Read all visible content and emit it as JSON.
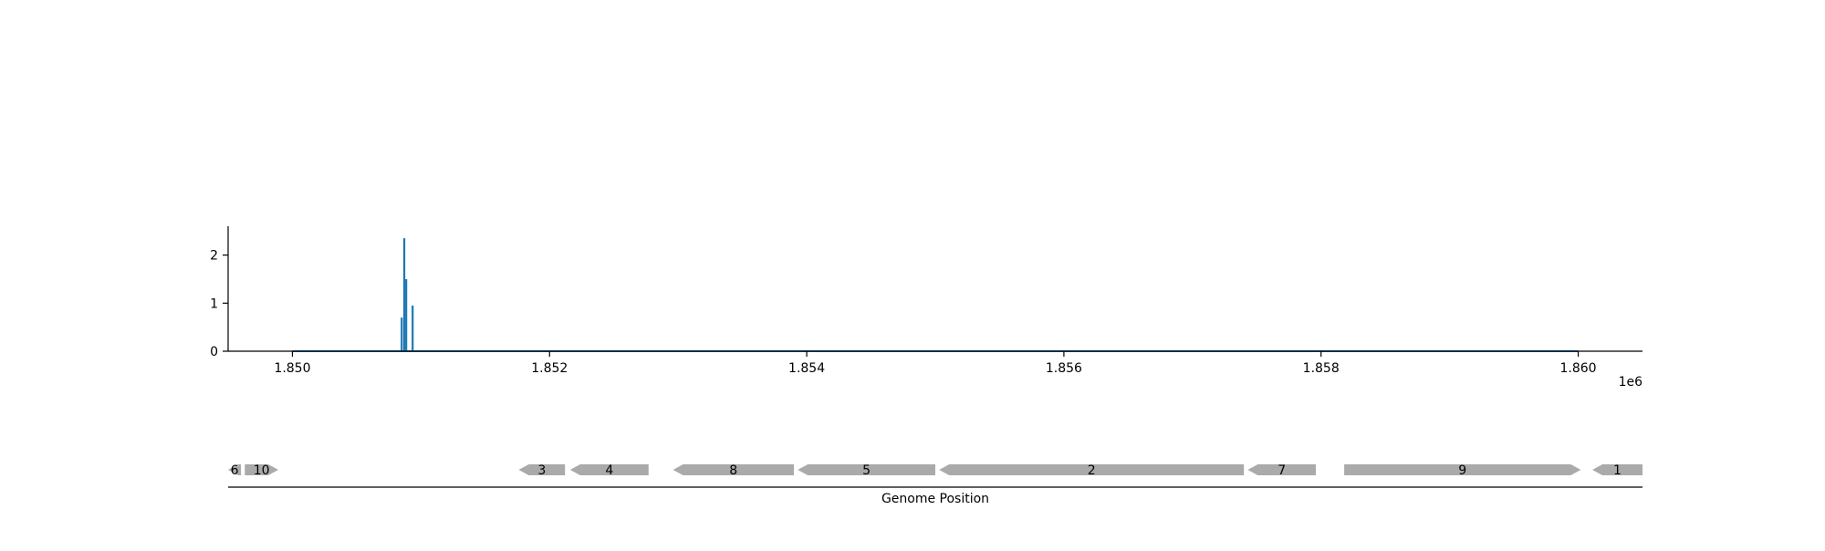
{
  "chart_data": [
    {
      "type": "line",
      "title": "",
      "xlabel": "",
      "ylabel": "",
      "x_offset_label": "1e6",
      "xlim": [
        1849500,
        1860500
      ],
      "ylim": [
        0,
        2.6
      ],
      "x_ticks": [
        {
          "value": 1850000,
          "label": "1.850"
        },
        {
          "value": 1852000,
          "label": "1.852"
        },
        {
          "value": 1854000,
          "label": "1.854"
        },
        {
          "value": 1856000,
          "label": "1.856"
        },
        {
          "value": 1858000,
          "label": "1.858"
        },
        {
          "value": 1860000,
          "label": "1.860"
        }
      ],
      "y_ticks": [
        {
          "value": 0,
          "label": "0"
        },
        {
          "value": 1,
          "label": "1"
        },
        {
          "value": 2,
          "label": "2"
        }
      ],
      "grid": false,
      "color": "#1f77b4",
      "baseline": [
        1850000,
        1860000
      ],
      "spikes": [
        {
          "x": 1850850,
          "y": 0.7
        },
        {
          "x": 1850870,
          "y": 2.35
        },
        {
          "x": 1850885,
          "y": 1.5
        },
        {
          "x": 1850935,
          "y": 0.95
        }
      ]
    },
    {
      "type": "gene_map",
      "xlabel": "Genome Position",
      "xlim": [
        1849500,
        1860500
      ],
      "color": "#aaaaaa",
      "genes": [
        {
          "label": "6",
          "start": 1849500,
          "end": 1849600,
          "strand": "-"
        },
        {
          "label": "10",
          "start": 1849630,
          "end": 1849890,
          "strand": "+"
        },
        {
          "label": "3",
          "start": 1851760,
          "end": 1852120,
          "strand": "-"
        },
        {
          "label": "4",
          "start": 1852160,
          "end": 1852770,
          "strand": "-"
        },
        {
          "label": "8",
          "start": 1852960,
          "end": 1853900,
          "strand": "-"
        },
        {
          "label": "5",
          "start": 1853930,
          "end": 1855000,
          "strand": "-"
        },
        {
          "label": "2",
          "start": 1855030,
          "end": 1857400,
          "strand": "-"
        },
        {
          "label": "7",
          "start": 1857430,
          "end": 1857960,
          "strand": "-"
        },
        {
          "label": "9",
          "start": 1858180,
          "end": 1860020,
          "strand": "+"
        },
        {
          "label": "1",
          "start": 1860110,
          "end": 1860500,
          "strand": "-"
        }
      ]
    }
  ]
}
